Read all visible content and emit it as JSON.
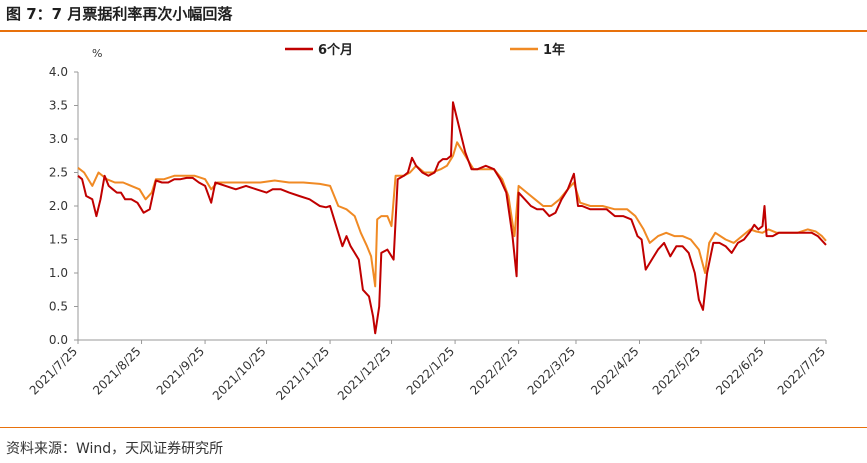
{
  "title": "图 7：7 月票据利率再次小幅回落",
  "source": "资料来源：Wind，天风证券研究所",
  "colors": {
    "accent": "#e8710c",
    "series_6m": "#c00000",
    "series_1y": "#f08a24"
  },
  "chart_data": {
    "type": "line",
    "unit": "%",
    "ylim": [
      0,
      4
    ],
    "yticks": [
      "0.0",
      "0.5",
      "1.0",
      "1.5",
      "2.0",
      "2.5",
      "3.0",
      "3.5",
      "4.0"
    ],
    "ytick_values": [
      0,
      0.5,
      1,
      1.5,
      2,
      2.5,
      3,
      3.5,
      4
    ],
    "xlim": [
      "2021-07-25",
      "2022-07-25"
    ],
    "xticks": [
      {
        "label": "2021/7/25",
        "date": "2021-07-25"
      },
      {
        "label": "2021/8/25",
        "date": "2021-08-25"
      },
      {
        "label": "2021/9/25",
        "date": "2021-09-25"
      },
      {
        "label": "2021/10/25",
        "date": "2021-10-25"
      },
      {
        "label": "2021/11/25",
        "date": "2021-11-25"
      },
      {
        "label": "2021/12/25",
        "date": "2021-12-25"
      },
      {
        "label": "2022/1/25",
        "date": "2022-01-25"
      },
      {
        "label": "2022/2/25",
        "date": "2022-02-25"
      },
      {
        "label": "2022/3/25",
        "date": "2022-03-25"
      },
      {
        "label": "2022/4/25",
        "date": "2022-04-25"
      },
      {
        "label": "2022/5/25",
        "date": "2022-05-25"
      },
      {
        "label": "2022/6/25",
        "date": "2022-06-25"
      },
      {
        "label": "2022/7/25",
        "date": "2022-07-25"
      }
    ],
    "legend_placement": "top",
    "grid": false,
    "series": [
      {
        "name": "6个月",
        "color": "#c00000",
        "points": [
          [
            "2021-07-25",
            2.45
          ],
          [
            "2021-07-27",
            2.4
          ],
          [
            "2021-07-29",
            2.15
          ],
          [
            "2021-08-01",
            2.1
          ],
          [
            "2021-08-03",
            1.85
          ],
          [
            "2021-08-05",
            2.1
          ],
          [
            "2021-08-07",
            2.45
          ],
          [
            "2021-08-09",
            2.3
          ],
          [
            "2021-08-11",
            2.25
          ],
          [
            "2021-08-13",
            2.2
          ],
          [
            "2021-08-15",
            2.2
          ],
          [
            "2021-08-17",
            2.1
          ],
          [
            "2021-08-20",
            2.1
          ],
          [
            "2021-08-23",
            2.05
          ],
          [
            "2021-08-26",
            1.9
          ],
          [
            "2021-08-29",
            1.95
          ],
          [
            "2021-09-01",
            2.38
          ],
          [
            "2021-09-04",
            2.35
          ],
          [
            "2021-09-07",
            2.35
          ],
          [
            "2021-09-10",
            2.4
          ],
          [
            "2021-09-13",
            2.4
          ],
          [
            "2021-09-16",
            2.42
          ],
          [
            "2021-09-19",
            2.42
          ],
          [
            "2021-09-22",
            2.35
          ],
          [
            "2021-09-25",
            2.3
          ],
          [
            "2021-09-28",
            2.05
          ],
          [
            "2021-09-30",
            2.35
          ],
          [
            "2021-10-05",
            2.3
          ],
          [
            "2021-10-10",
            2.25
          ],
          [
            "2021-10-15",
            2.3
          ],
          [
            "2021-10-20",
            2.25
          ],
          [
            "2021-10-25",
            2.2
          ],
          [
            "2021-10-28",
            2.25
          ],
          [
            "2021-11-01",
            2.25
          ],
          [
            "2021-11-05",
            2.2
          ],
          [
            "2021-11-10",
            2.15
          ],
          [
            "2021-11-15",
            2.1
          ],
          [
            "2021-11-20",
            2.0
          ],
          [
            "2021-11-23",
            1.98
          ],
          [
            "2021-11-25",
            2.0
          ],
          [
            "2021-11-27",
            1.8
          ],
          [
            "2021-11-29",
            1.6
          ],
          [
            "2021-12-01",
            1.4
          ],
          [
            "2021-12-03",
            1.55
          ],
          [
            "2021-12-05",
            1.4
          ],
          [
            "2021-12-07",
            1.3
          ],
          [
            "2021-12-09",
            1.2
          ],
          [
            "2021-12-11",
            0.75
          ],
          [
            "2021-12-14",
            0.65
          ],
          [
            "2021-12-16",
            0.35
          ],
          [
            "2021-12-17",
            0.1
          ],
          [
            "2021-12-19",
            0.5
          ],
          [
            "2021-12-20",
            1.3
          ],
          [
            "2021-12-23",
            1.35
          ],
          [
            "2021-12-26",
            1.2
          ],
          [
            "2021-12-28",
            2.4
          ],
          [
            "2021-12-31",
            2.45
          ],
          [
            "2022-01-02",
            2.5
          ],
          [
            "2022-01-04",
            2.72
          ],
          [
            "2022-01-06",
            2.6
          ],
          [
            "2022-01-09",
            2.5
          ],
          [
            "2022-01-12",
            2.45
          ],
          [
            "2022-01-15",
            2.5
          ],
          [
            "2022-01-17",
            2.65
          ],
          [
            "2022-01-19",
            2.7
          ],
          [
            "2022-01-21",
            2.7
          ],
          [
            "2022-01-23",
            2.75
          ],
          [
            "2022-01-24",
            3.55
          ],
          [
            "2022-01-26",
            3.3
          ],
          [
            "2022-01-30",
            2.8
          ],
          [
            "2022-02-02",
            2.55
          ],
          [
            "2022-02-05",
            2.55
          ],
          [
            "2022-02-09",
            2.6
          ],
          [
            "2022-02-13",
            2.55
          ],
          [
            "2022-02-16",
            2.4
          ],
          [
            "2022-02-19",
            2.2
          ],
          [
            "2022-02-22",
            1.55
          ],
          [
            "2022-02-24",
            0.95
          ],
          [
            "2022-02-25",
            2.2
          ],
          [
            "2022-02-28",
            2.1
          ],
          [
            "2022-03-03",
            2.0
          ],
          [
            "2022-03-06",
            1.95
          ],
          [
            "2022-03-09",
            1.95
          ],
          [
            "2022-03-12",
            1.85
          ],
          [
            "2022-03-15",
            1.9
          ],
          [
            "2022-03-18",
            2.1
          ],
          [
            "2022-03-21",
            2.25
          ],
          [
            "2022-03-24",
            2.48
          ],
          [
            "2022-03-26",
            2.0
          ],
          [
            "2022-03-28",
            2.0
          ],
          [
            "2022-04-01",
            1.95
          ],
          [
            "2022-04-05",
            1.95
          ],
          [
            "2022-04-09",
            1.95
          ],
          [
            "2022-04-13",
            1.85
          ],
          [
            "2022-04-17",
            1.85
          ],
          [
            "2022-04-21",
            1.8
          ],
          [
            "2022-04-24",
            1.55
          ],
          [
            "2022-04-26",
            1.5
          ],
          [
            "2022-04-28",
            1.05
          ],
          [
            "2022-05-01",
            1.2
          ],
          [
            "2022-05-04",
            1.35
          ],
          [
            "2022-05-07",
            1.45
          ],
          [
            "2022-05-10",
            1.25
          ],
          [
            "2022-05-13",
            1.4
          ],
          [
            "2022-05-16",
            1.4
          ],
          [
            "2022-05-19",
            1.3
          ],
          [
            "2022-05-22",
            1.0
          ],
          [
            "2022-05-24",
            0.6
          ],
          [
            "2022-05-26",
            0.45
          ],
          [
            "2022-05-28",
            1.0
          ],
          [
            "2022-05-31",
            1.45
          ],
          [
            "2022-06-03",
            1.45
          ],
          [
            "2022-06-06",
            1.4
          ],
          [
            "2022-06-09",
            1.3
          ],
          [
            "2022-06-12",
            1.45
          ],
          [
            "2022-06-15",
            1.5
          ],
          [
            "2022-06-18",
            1.62
          ],
          [
            "2022-06-20",
            1.72
          ],
          [
            "2022-06-22",
            1.65
          ],
          [
            "2022-06-24",
            1.7
          ],
          [
            "2022-06-25",
            2.0
          ],
          [
            "2022-06-26",
            1.55
          ],
          [
            "2022-06-29",
            1.55
          ],
          [
            "2022-07-02",
            1.6
          ],
          [
            "2022-07-06",
            1.6
          ],
          [
            "2022-07-10",
            1.6
          ],
          [
            "2022-07-14",
            1.6
          ],
          [
            "2022-07-18",
            1.6
          ],
          [
            "2022-07-21",
            1.55
          ],
          [
            "2022-07-25",
            1.42
          ]
        ]
      },
      {
        "name": "1年",
        "color": "#f08a24",
        "points": [
          [
            "2021-07-25",
            2.57
          ],
          [
            "2021-07-28",
            2.5
          ],
          [
            "2021-08-01",
            2.3
          ],
          [
            "2021-08-04",
            2.5
          ],
          [
            "2021-08-08",
            2.4
          ],
          [
            "2021-08-12",
            2.35
          ],
          [
            "2021-08-16",
            2.35
          ],
          [
            "2021-08-20",
            2.3
          ],
          [
            "2021-08-24",
            2.25
          ],
          [
            "2021-08-27",
            2.1
          ],
          [
            "2021-08-30",
            2.2
          ],
          [
            "2021-09-01",
            2.4
          ],
          [
            "2021-09-05",
            2.4
          ],
          [
            "2021-09-10",
            2.45
          ],
          [
            "2021-09-15",
            2.45
          ],
          [
            "2021-09-20",
            2.45
          ],
          [
            "2021-09-25",
            2.4
          ],
          [
            "2021-09-28",
            2.25
          ],
          [
            "2021-10-01",
            2.35
          ],
          [
            "2021-10-08",
            2.35
          ],
          [
            "2021-10-15",
            2.35
          ],
          [
            "2021-10-22",
            2.35
          ],
          [
            "2021-10-29",
            2.38
          ],
          [
            "2021-11-05",
            2.35
          ],
          [
            "2021-11-12",
            2.35
          ],
          [
            "2021-11-20",
            2.33
          ],
          [
            "2021-11-25",
            2.3
          ],
          [
            "2021-11-29",
            2.0
          ],
          [
            "2021-12-03",
            1.95
          ],
          [
            "2021-12-07",
            1.85
          ],
          [
            "2021-12-10",
            1.6
          ],
          [
            "2021-12-13",
            1.4
          ],
          [
            "2021-12-15",
            1.25
          ],
          [
            "2021-12-17",
            0.8
          ],
          [
            "2021-12-18",
            1.8
          ],
          [
            "2021-12-20",
            1.85
          ],
          [
            "2021-12-23",
            1.85
          ],
          [
            "2021-12-25",
            1.7
          ],
          [
            "2021-12-27",
            2.45
          ],
          [
            "2021-12-31",
            2.45
          ],
          [
            "2022-01-03",
            2.5
          ],
          [
            "2022-01-06",
            2.6
          ],
          [
            "2022-01-10",
            2.5
          ],
          [
            "2022-01-14",
            2.5
          ],
          [
            "2022-01-18",
            2.55
          ],
          [
            "2022-01-21",
            2.6
          ],
          [
            "2022-01-24",
            2.75
          ],
          [
            "2022-01-26",
            2.95
          ],
          [
            "2022-01-30",
            2.75
          ],
          [
            "2022-02-03",
            2.55
          ],
          [
            "2022-02-08",
            2.55
          ],
          [
            "2022-02-13",
            2.55
          ],
          [
            "2022-02-17",
            2.4
          ],
          [
            "2022-02-20",
            2.15
          ],
          [
            "2022-02-23",
            1.55
          ],
          [
            "2022-02-25",
            2.3
          ],
          [
            "2022-03-01",
            2.2
          ],
          [
            "2022-03-05",
            2.1
          ],
          [
            "2022-03-09",
            2.0
          ],
          [
            "2022-03-13",
            2.0
          ],
          [
            "2022-03-17",
            2.1
          ],
          [
            "2022-03-21",
            2.25
          ],
          [
            "2022-03-24",
            2.35
          ],
          [
            "2022-03-27",
            2.05
          ],
          [
            "2022-04-01",
            2.0
          ],
          [
            "2022-04-07",
            2.0
          ],
          [
            "2022-04-13",
            1.95
          ],
          [
            "2022-04-19",
            1.95
          ],
          [
            "2022-04-23",
            1.85
          ],
          [
            "2022-04-27",
            1.65
          ],
          [
            "2022-04-30",
            1.45
          ],
          [
            "2022-05-04",
            1.55
          ],
          [
            "2022-05-08",
            1.6
          ],
          [
            "2022-05-12",
            1.55
          ],
          [
            "2022-05-16",
            1.55
          ],
          [
            "2022-05-20",
            1.5
          ],
          [
            "2022-05-24",
            1.35
          ],
          [
            "2022-05-27",
            1.0
          ],
          [
            "2022-05-29",
            1.45
          ],
          [
            "2022-06-01",
            1.6
          ],
          [
            "2022-06-06",
            1.5
          ],
          [
            "2022-06-10",
            1.45
          ],
          [
            "2022-06-14",
            1.55
          ],
          [
            "2022-06-18",
            1.65
          ],
          [
            "2022-06-21",
            1.62
          ],
          [
            "2022-06-24",
            1.6
          ],
          [
            "2022-06-27",
            1.65
          ],
          [
            "2022-07-01",
            1.6
          ],
          [
            "2022-07-06",
            1.6
          ],
          [
            "2022-07-11",
            1.6
          ],
          [
            "2022-07-16",
            1.65
          ],
          [
            "2022-07-20",
            1.62
          ],
          [
            "2022-07-23",
            1.55
          ],
          [
            "2022-07-25",
            1.48
          ]
        ]
      }
    ]
  }
}
